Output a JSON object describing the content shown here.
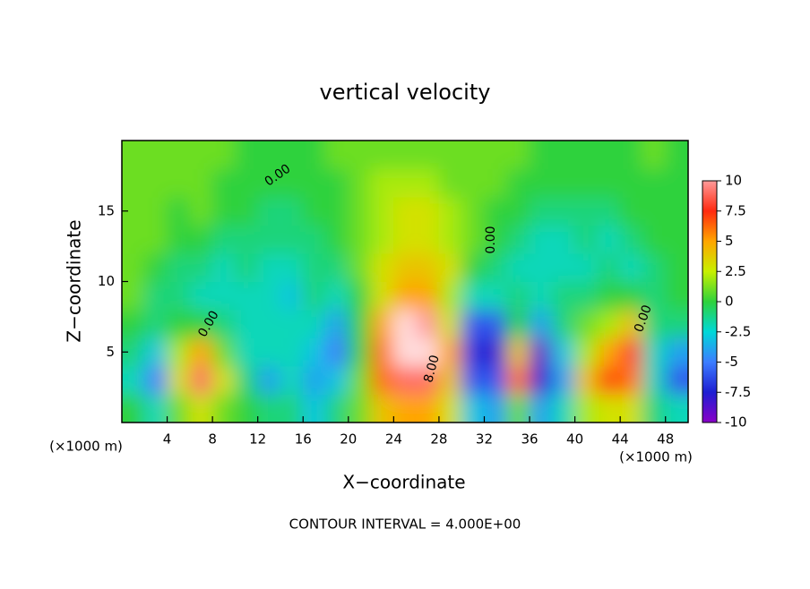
{
  "chart_data": {
    "type": "heatmap",
    "title": "vertical velocity",
    "x_label": "X−coordinate",
    "y_label": "Z−coordinate",
    "x_unit": "(×1000 m)",
    "y_unit": "(×1000 m)",
    "footer": "CONTOUR INTERVAL = 4.000E+00",
    "contour_labels": [
      "0.00",
      "0.00",
      "0.00",
      "0.00",
      "8.00"
    ],
    "xlim": [
      0,
      50
    ],
    "ylim": [
      0,
      20
    ],
    "xticks": [
      4,
      8,
      12,
      16,
      20,
      24,
      28,
      32,
      36,
      40,
      44,
      48
    ],
    "yticks": [
      5,
      10,
      15
    ],
    "x": [
      1,
      3,
      5,
      7,
      9,
      11,
      13,
      15,
      17,
      19,
      21,
      23,
      25,
      27,
      29,
      31,
      33,
      35,
      37,
      39,
      41,
      43,
      45,
      47,
      49
    ],
    "y": [
      1,
      3,
      5,
      7,
      9,
      11,
      13,
      15,
      17,
      19
    ],
    "z": [
      [
        0,
        -2,
        1,
        3,
        1,
        0,
        -1,
        -1,
        -3,
        -1,
        1,
        4,
        5,
        5,
        3,
        -3,
        -4,
        1,
        -4,
        -2,
        2,
        3,
        3,
        -1,
        -2
      ],
      [
        -2,
        -5,
        3,
        9,
        3,
        -1,
        -4,
        -2,
        -4,
        -3,
        1,
        6,
        9,
        9,
        4,
        -6,
        -6,
        6,
        -8,
        -4,
        4,
        7,
        6,
        -2,
        -6
      ],
      [
        -1,
        -3,
        2,
        5,
        1,
        -2,
        -2,
        -2,
        -3,
        -5,
        0,
        6,
        11,
        11,
        5,
        -7,
        -8,
        4,
        -9,
        -3,
        2,
        5,
        8,
        -2,
        -4
      ],
      [
        0,
        -1,
        0,
        0,
        -1,
        -2,
        -2,
        -2,
        -2,
        -4,
        0,
        5,
        11,
        10,
        3,
        -6,
        -6,
        0,
        -4,
        -1,
        1,
        2,
        4,
        -1,
        -1
      ],
      [
        1,
        -1,
        -1,
        -2,
        -2,
        -2,
        -2,
        -3,
        -1,
        -2,
        0,
        3,
        5,
        5,
        2,
        -2,
        -2,
        -1,
        -2,
        -1,
        -1,
        0,
        0,
        -1,
        0
      ],
      [
        1,
        0,
        -1,
        -1,
        -2,
        -1,
        -2,
        -2,
        -1,
        -1,
        1,
        3,
        4,
        4,
        3,
        0,
        -1,
        -2,
        -2,
        -2,
        -2,
        -1,
        -2,
        -1,
        0
      ],
      [
        1,
        1,
        0,
        0,
        -1,
        -1,
        -1,
        -1,
        -1,
        0,
        1,
        2,
        3,
        3,
        2,
        1,
        0,
        -1,
        -2,
        -2,
        -1,
        -2,
        -1,
        0,
        0
      ],
      [
        1,
        1,
        0,
        1,
        0,
        0,
        -1,
        -1,
        0,
        0,
        1,
        2,
        3,
        3,
        2,
        1,
        0,
        0,
        -1,
        -1,
        -1,
        -1,
        0,
        0,
        0
      ],
      [
        1,
        1,
        1,
        1,
        0,
        0,
        0,
        0,
        0,
        0,
        1,
        2,
        2,
        2,
        1,
        1,
        1,
        0,
        0,
        0,
        0,
        0,
        0,
        0,
        0
      ],
      [
        1,
        1,
        1,
        1,
        1,
        0,
        0,
        0,
        0,
        1,
        1,
        1,
        1,
        1,
        1,
        1,
        1,
        1,
        0,
        0,
        0,
        0,
        0,
        1,
        0
      ]
    ],
    "zlim": [
      -10,
      10
    ],
    "zticks": [
      10,
      7.5,
      5,
      2.5,
      0,
      -2.5,
      -5,
      -7.5,
      -10
    ],
    "colorscale": [
      [
        -10,
        "#8a00c8"
      ],
      [
        -7.5,
        "#1e1ed2"
      ],
      [
        -5,
        "#3c7dff"
      ],
      [
        -2.5,
        "#00d8d8"
      ],
      [
        0,
        "#2fd23c"
      ],
      [
        2.5,
        "#c8f000"
      ],
      [
        5,
        "#ffa500"
      ],
      [
        7.5,
        "#ff2a10"
      ],
      [
        10,
        "#ff9a9a"
      ]
    ]
  }
}
